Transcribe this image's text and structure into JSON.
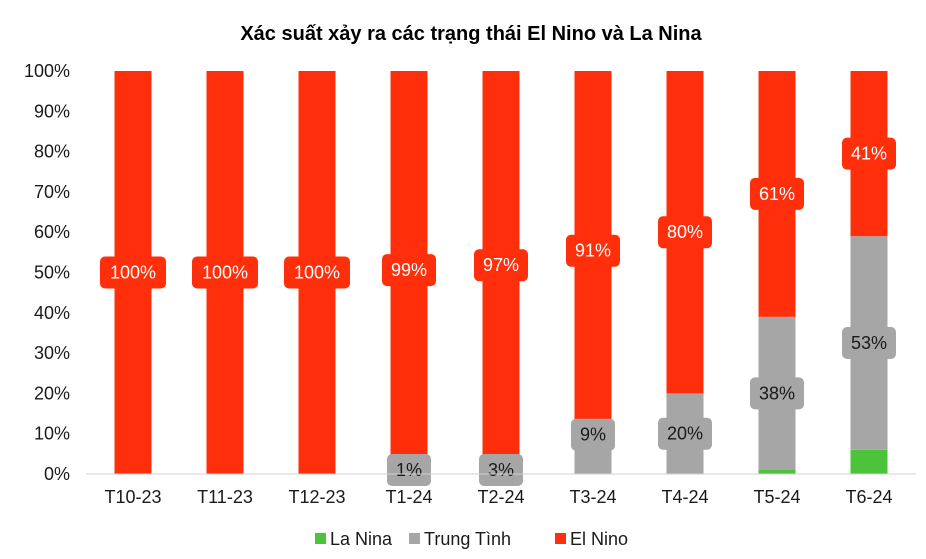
{
  "chart_data": {
    "type": "bar",
    "stacked": true,
    "title": "Xác suất xảy ra các trạng thái El Nino và La Nina",
    "categories": [
      "T10-23",
      "T11-23",
      "T12-23",
      "T1-24",
      "T2-24",
      "T3-24",
      "T4-24",
      "T5-24",
      "T6-24"
    ],
    "series": [
      {
        "name": "La Nina",
        "color": "#4dc23b",
        "values": [
          0,
          0,
          0,
          0,
          0,
          0,
          0,
          1,
          6
        ]
      },
      {
        "name": "Trung Tình",
        "color": "#a6a6a6",
        "values": [
          0,
          0,
          0,
          1,
          3,
          9,
          20,
          38,
          53
        ]
      },
      {
        "name": "El Nino",
        "color": "#ff2f0b",
        "values": [
          100,
          100,
          100,
          99,
          97,
          91,
          80,
          61,
          41
        ]
      }
    ],
    "data_labels": {
      "Trung Tình": [
        "",
        "",
        "",
        "1%",
        "3%",
        "9%",
        "20%",
        "38%",
        "53%"
      ],
      "El Nino": [
        "100%",
        "100%",
        "100%",
        "99%",
        "97%",
        "91%",
        "80%",
        "61%",
        "41%"
      ]
    },
    "ylim": [
      0,
      100
    ],
    "yticks": [
      "0%",
      "10%",
      "20%",
      "30%",
      "40%",
      "50%",
      "60%",
      "70%",
      "80%",
      "90%",
      "100%"
    ],
    "grid": false,
    "legend_position": "bottom"
  }
}
